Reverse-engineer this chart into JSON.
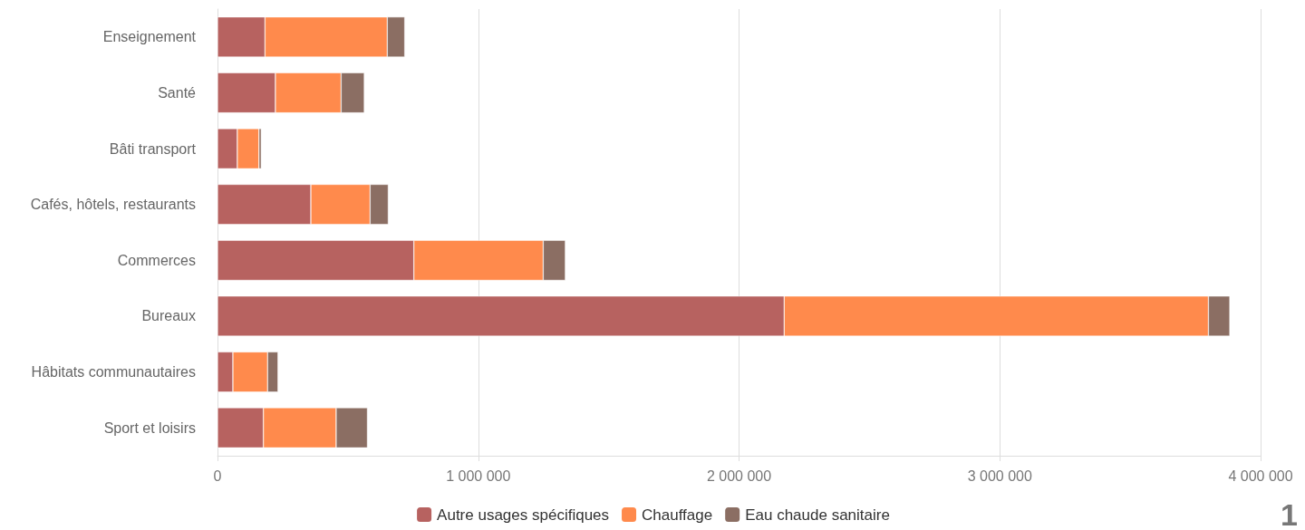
{
  "chart_data": {
    "type": "bar",
    "orientation": "horizontal",
    "stacked": true,
    "categories": [
      "Enseignement",
      "Santé",
      "Bâti transport",
      "Cafés, hôtels, restaurants",
      "Commerces",
      "Bureaux",
      "Hâbitats communautaires",
      "Sport et loisirs"
    ],
    "series": [
      {
        "name": "Autre usages spécifiques",
        "color": "#b76260",
        "values": [
          182000,
          222000,
          76000,
          358000,
          753000,
          2173000,
          59000,
          176000
        ]
      },
      {
        "name": "Chauffage",
        "color": "#ff8a4c",
        "values": [
          469000,
          252000,
          83000,
          227000,
          496000,
          1627000,
          133000,
          279000
        ]
      },
      {
        "name": "Eau chaude sanitaire",
        "color": "#8b6e63",
        "values": [
          67000,
          89000,
          9000,
          70000,
          85000,
          82000,
          40000,
          120000
        ]
      }
    ],
    "xlim": [
      0,
      4000000
    ],
    "xticks": [
      {
        "value": 0,
        "label": "0"
      },
      {
        "value": 1000000,
        "label": "1 000 000"
      },
      {
        "value": 2000000,
        "label": "2 000 000"
      },
      {
        "value": 3000000,
        "label": "3 000 000"
      },
      {
        "value": 4000000,
        "label": "4 000 000"
      }
    ],
    "grid": "x",
    "legend": "bottom",
    "annotations": [
      "1"
    ]
  }
}
